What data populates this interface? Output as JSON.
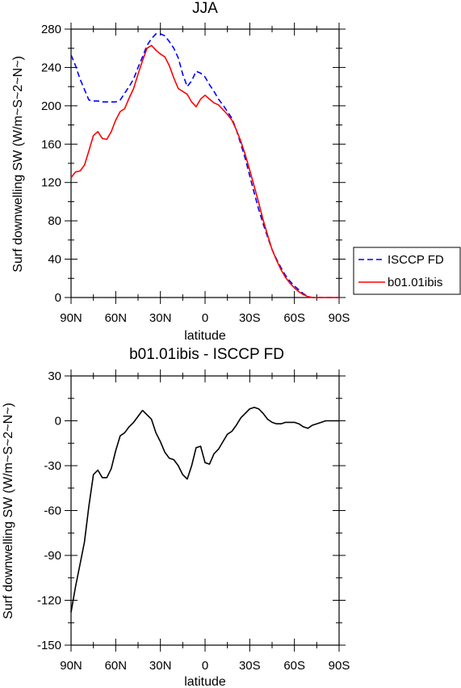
{
  "chart_data": [
    {
      "type": "line",
      "title": "JJA",
      "xlabel": "latitude",
      "ylabel": "Surf downwelling SW (W/m~S~2~N~)",
      "x": [
        90,
        87,
        84,
        81,
        78,
        75,
        72,
        69,
        66,
        63,
        60,
        57,
        54,
        51,
        48,
        45,
        42,
        39,
        36,
        33,
        30,
        27,
        24,
        21,
        18,
        15,
        12,
        9,
        6,
        3,
        0,
        -3,
        -6,
        -9,
        -12,
        -15,
        -18,
        -21,
        -24,
        -27,
        -30,
        -33,
        -36,
        -39,
        -42,
        -45,
        -48,
        -51,
        -54,
        -57,
        -60,
        -63,
        -66,
        -69,
        -72,
        -75,
        -78,
        -81,
        -84,
        -87,
        -90
      ],
      "x_ticks": [
        90,
        60,
        30,
        0,
        -30,
        -60,
        -90
      ],
      "x_tick_labels": [
        "90N",
        "60N",
        "30N",
        "0",
        "30S",
        "60S",
        "90S"
      ],
      "xlim": [
        90,
        -90
      ],
      "ylim": [
        0,
        280
      ],
      "y_ticks": [
        0,
        40,
        80,
        120,
        160,
        200,
        240,
        280
      ],
      "series": [
        {
          "name": "ISCCP FD",
          "color": "#0000ff",
          "dash": "dashed",
          "values": [
            253,
            242,
            228,
            217,
            206,
            205,
            205,
            204,
            204,
            204,
            204,
            206,
            213,
            220,
            228,
            240,
            251,
            263,
            270,
            275,
            275,
            273,
            267,
            260,
            250,
            233,
            220,
            226,
            236,
            234,
            230,
            222,
            215,
            207,
            201,
            194,
            187,
            175,
            160,
            145,
            127,
            109,
            92,
            77,
            63,
            50,
            40,
            31,
            23,
            17,
            12,
            8,
            4,
            1,
            0,
            0,
            0,
            0,
            0,
            0,
            0
          ]
        },
        {
          "name": "b01.01ibis",
          "color": "#ff0000",
          "dash": "solid",
          "values": [
            125,
            131,
            132,
            138,
            153,
            169,
            173,
            166,
            165,
            173,
            185,
            194,
            197,
            208,
            218,
            233,
            247,
            260,
            263,
            258,
            254,
            251,
            242,
            229,
            218,
            215,
            212,
            204,
            199,
            207,
            211,
            207,
            203,
            201,
            196,
            191,
            185,
            175,
            163,
            149,
            133,
            116,
            99,
            81,
            65,
            50,
            39,
            29,
            21,
            15,
            10,
            6,
            3,
            1,
            0,
            0,
            0,
            0,
            0,
            0,
            0
          ]
        }
      ],
      "legend": "right"
    },
    {
      "type": "line",
      "title": "b01.01ibis - ISCCP FD",
      "xlabel": "latitude",
      "ylabel": "Surf downwelling SW (W/m~S~2~N~)",
      "x": [
        90,
        87,
        84,
        81,
        78,
        75,
        72,
        69,
        66,
        63,
        60,
        57,
        54,
        51,
        48,
        45,
        42,
        39,
        36,
        33,
        30,
        27,
        24,
        21,
        18,
        15,
        12,
        9,
        6,
        3,
        0,
        -3,
        -6,
        -9,
        -12,
        -15,
        -18,
        -21,
        -24,
        -27,
        -30,
        -33,
        -36,
        -39,
        -42,
        -45,
        -48,
        -51,
        -54,
        -57,
        -60,
        -63,
        -66,
        -69,
        -72,
        -75,
        -78,
        -81,
        -84,
        -87,
        -90
      ],
      "x_ticks": [
        90,
        60,
        30,
        0,
        -30,
        -60,
        -90
      ],
      "x_tick_labels": [
        "90N",
        "60N",
        "30N",
        "0",
        "30S",
        "60S",
        "90S"
      ],
      "xlim": [
        90,
        -90
      ],
      "ylim": [
        -150,
        30
      ],
      "y_ticks": [
        -150,
        -120,
        -90,
        -60,
        -30,
        0,
        30
      ],
      "series": [
        {
          "color": "#000000",
          "dash": "solid",
          "values": [
            -128,
            -111,
            -96,
            -81,
            -57,
            -36,
            -33,
            -38,
            -38,
            -32,
            -20,
            -10,
            -8,
            -4,
            -1,
            3,
            7,
            4,
            1,
            -8,
            -14,
            -21,
            -25,
            -26,
            -30,
            -36,
            -39,
            -30,
            -18,
            -17,
            -28,
            -29,
            -22,
            -19,
            -14,
            -9,
            -7,
            -3,
            2,
            5,
            8,
            9,
            8,
            5,
            1,
            -1,
            -2,
            -2,
            -1,
            -1,
            -1,
            -2,
            -4,
            -5,
            -3,
            -2,
            -1,
            0,
            0,
            0,
            0
          ]
        }
      ]
    }
  ]
}
